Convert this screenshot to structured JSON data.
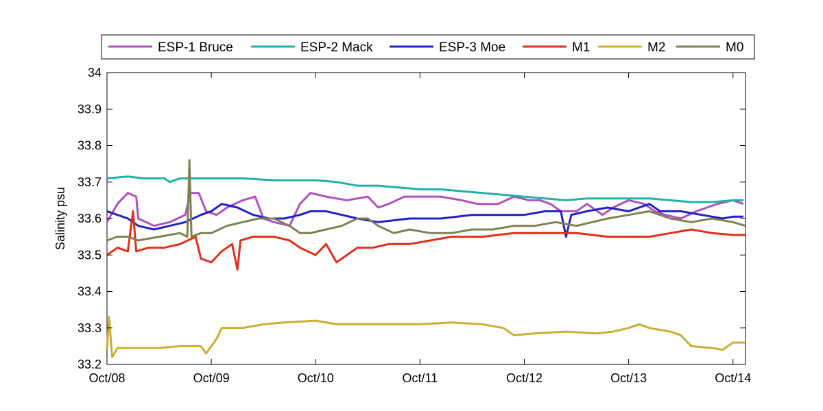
{
  "chart_data": {
    "type": "line",
    "title": "",
    "xlabel": "",
    "ylabel": "Salinity psu",
    "x_ticks": [
      "Oct/08",
      "Oct/09",
      "Oct/10",
      "Oct/11",
      "Oct/12",
      "Oct/13",
      "Oct/14"
    ],
    "x_range": [
      2008.0,
      2014.12
    ],
    "ylim": [
      33.2,
      34.0
    ],
    "y_ticks": [
      "33.2",
      "33.3",
      "33.4",
      "33.5",
      "33.6",
      "33.7",
      "33.8",
      "33.9",
      "34"
    ],
    "grid": false,
    "legend": "top-outside",
    "series": [
      {
        "name": "ESP-1 Bruce",
        "color": "#b050c0",
        "points": [
          [
            2008.0,
            33.59
          ],
          [
            2008.1,
            33.64
          ],
          [
            2008.2,
            33.67
          ],
          [
            2008.28,
            33.66
          ],
          [
            2008.3,
            33.6
          ],
          [
            2008.45,
            33.58
          ],
          [
            2008.6,
            33.59
          ],
          [
            2008.75,
            33.61
          ],
          [
            2008.8,
            33.67
          ],
          [
            2008.88,
            33.67
          ],
          [
            2008.95,
            33.62
          ],
          [
            2009.05,
            33.61
          ],
          [
            2009.15,
            33.63
          ],
          [
            2009.3,
            33.65
          ],
          [
            2009.42,
            33.66
          ],
          [
            2009.5,
            33.6
          ],
          [
            2009.6,
            33.59
          ],
          [
            2009.75,
            33.58
          ],
          [
            2009.85,
            33.64
          ],
          [
            2009.95,
            33.67
          ],
          [
            2010.1,
            33.66
          ],
          [
            2010.3,
            33.65
          ],
          [
            2010.5,
            33.66
          ],
          [
            2010.6,
            33.63
          ],
          [
            2010.7,
            33.64
          ],
          [
            2010.85,
            33.66
          ],
          [
            2011.0,
            33.66
          ],
          [
            2011.2,
            33.66
          ],
          [
            2011.4,
            33.65
          ],
          [
            2011.55,
            33.64
          ],
          [
            2011.75,
            33.64
          ],
          [
            2011.9,
            33.66
          ],
          [
            2012.05,
            33.65
          ],
          [
            2012.15,
            33.65
          ],
          [
            2012.25,
            33.64
          ],
          [
            2012.35,
            33.62
          ],
          [
            2012.5,
            33.62
          ],
          [
            2012.6,
            33.64
          ],
          [
            2012.75,
            33.61
          ],
          [
            2012.85,
            33.63
          ],
          [
            2013.0,
            33.65
          ],
          [
            2013.15,
            33.64
          ],
          [
            2013.25,
            33.62
          ],
          [
            2013.35,
            33.61
          ],
          [
            2013.5,
            33.6
          ],
          [
            2013.65,
            33.62
          ],
          [
            2013.75,
            33.63
          ],
          [
            2013.85,
            33.64
          ],
          [
            2014.0,
            33.65
          ],
          [
            2014.1,
            33.64
          ]
        ]
      },
      {
        "name": "ESP-2 Mack",
        "color": "#20b0a8",
        "points": [
          [
            2008.0,
            33.71
          ],
          [
            2008.2,
            33.715
          ],
          [
            2008.35,
            33.71
          ],
          [
            2008.55,
            33.71
          ],
          [
            2008.6,
            33.7
          ],
          [
            2008.7,
            33.71
          ],
          [
            2009.0,
            33.71
          ],
          [
            2009.3,
            33.71
          ],
          [
            2009.6,
            33.705
          ],
          [
            2010.0,
            33.705
          ],
          [
            2010.2,
            33.7
          ],
          [
            2010.4,
            33.69
          ],
          [
            2010.6,
            33.69
          ],
          [
            2010.8,
            33.685
          ],
          [
            2011.0,
            33.68
          ],
          [
            2011.2,
            33.68
          ],
          [
            2011.4,
            33.675
          ],
          [
            2011.6,
            33.67
          ],
          [
            2011.8,
            33.665
          ],
          [
            2012.0,
            33.66
          ],
          [
            2012.2,
            33.655
          ],
          [
            2012.4,
            33.65
          ],
          [
            2012.6,
            33.655
          ],
          [
            2012.8,
            33.655
          ],
          [
            2013.0,
            33.655
          ],
          [
            2013.2,
            33.655
          ],
          [
            2013.4,
            33.65
          ],
          [
            2013.6,
            33.645
          ],
          [
            2013.8,
            33.645
          ],
          [
            2014.0,
            33.65
          ],
          [
            2014.1,
            33.65
          ]
        ]
      },
      {
        "name": "ESP-3 Moe",
        "color": "#2020c8",
        "points": [
          [
            2008.0,
            33.62
          ],
          [
            2008.1,
            33.61
          ],
          [
            2008.2,
            33.6
          ],
          [
            2008.3,
            33.58
          ],
          [
            2008.45,
            33.57
          ],
          [
            2008.6,
            33.58
          ],
          [
            2008.75,
            33.59
          ],
          [
            2008.9,
            33.61
          ],
          [
            2009.0,
            33.62
          ],
          [
            2009.1,
            33.64
          ],
          [
            2009.25,
            33.63
          ],
          [
            2009.4,
            33.61
          ],
          [
            2009.55,
            33.6
          ],
          [
            2009.7,
            33.6
          ],
          [
            2009.85,
            33.61
          ],
          [
            2009.95,
            33.62
          ],
          [
            2010.1,
            33.62
          ],
          [
            2010.25,
            33.61
          ],
          [
            2010.4,
            33.6
          ],
          [
            2010.6,
            33.59
          ],
          [
            2010.9,
            33.6
          ],
          [
            2011.2,
            33.6
          ],
          [
            2011.5,
            33.61
          ],
          [
            2011.8,
            33.61
          ],
          [
            2012.0,
            33.61
          ],
          [
            2012.2,
            33.62
          ],
          [
            2012.35,
            33.62
          ],
          [
            2012.4,
            33.55
          ],
          [
            2012.45,
            33.61
          ],
          [
            2012.6,
            33.62
          ],
          [
            2012.8,
            33.63
          ],
          [
            2013.0,
            33.62
          ],
          [
            2013.1,
            33.63
          ],
          [
            2013.2,
            33.64
          ],
          [
            2013.3,
            33.62
          ],
          [
            2013.5,
            33.62
          ],
          [
            2013.7,
            33.61
          ],
          [
            2013.9,
            33.6
          ],
          [
            2014.0,
            33.605
          ],
          [
            2014.1,
            33.605
          ]
        ]
      },
      {
        "name": "M1",
        "color": "#e03018",
        "points": [
          [
            2008.0,
            33.5
          ],
          [
            2008.1,
            33.52
          ],
          [
            2008.2,
            33.51
          ],
          [
            2008.25,
            33.62
          ],
          [
            2008.28,
            33.51
          ],
          [
            2008.4,
            33.52
          ],
          [
            2008.55,
            33.52
          ],
          [
            2008.7,
            33.53
          ],
          [
            2008.85,
            33.55
          ],
          [
            2008.9,
            33.49
          ],
          [
            2009.0,
            33.48
          ],
          [
            2009.1,
            33.51
          ],
          [
            2009.2,
            33.53
          ],
          [
            2009.25,
            33.46
          ],
          [
            2009.28,
            33.54
          ],
          [
            2009.4,
            33.55
          ],
          [
            2009.6,
            33.55
          ],
          [
            2009.75,
            33.54
          ],
          [
            2009.85,
            33.52
          ],
          [
            2010.0,
            33.5
          ],
          [
            2010.1,
            33.53
          ],
          [
            2010.2,
            33.48
          ],
          [
            2010.3,
            33.5
          ],
          [
            2010.4,
            33.52
          ],
          [
            2010.55,
            33.52
          ],
          [
            2010.7,
            33.53
          ],
          [
            2010.9,
            33.53
          ],
          [
            2011.1,
            33.54
          ],
          [
            2011.3,
            33.55
          ],
          [
            2011.6,
            33.55
          ],
          [
            2011.9,
            33.56
          ],
          [
            2012.2,
            33.56
          ],
          [
            2012.5,
            33.56
          ],
          [
            2012.8,
            33.55
          ],
          [
            2013.0,
            33.55
          ],
          [
            2013.2,
            33.55
          ],
          [
            2013.4,
            33.56
          ],
          [
            2013.6,
            33.57
          ],
          [
            2013.8,
            33.56
          ],
          [
            2014.0,
            33.555
          ],
          [
            2014.12,
            33.555
          ]
        ]
      },
      {
        "name": "M2",
        "color": "#c8b030",
        "points": [
          [
            2008.0,
            33.24
          ],
          [
            2008.02,
            33.33
          ],
          [
            2008.05,
            33.22
          ],
          [
            2008.1,
            33.245
          ],
          [
            2008.3,
            33.245
          ],
          [
            2008.5,
            33.245
          ],
          [
            2008.7,
            33.25
          ],
          [
            2008.9,
            33.25
          ],
          [
            2008.95,
            33.23
          ],
          [
            2009.05,
            33.27
          ],
          [
            2009.1,
            33.3
          ],
          [
            2009.3,
            33.3
          ],
          [
            2009.5,
            33.31
          ],
          [
            2009.7,
            33.315
          ],
          [
            2010.0,
            33.32
          ],
          [
            2010.2,
            33.31
          ],
          [
            2010.5,
            33.31
          ],
          [
            2010.8,
            33.31
          ],
          [
            2011.0,
            33.31
          ],
          [
            2011.3,
            33.315
          ],
          [
            2011.6,
            33.31
          ],
          [
            2011.8,
            33.3
          ],
          [
            2011.9,
            33.28
          ],
          [
            2012.1,
            33.285
          ],
          [
            2012.4,
            33.29
          ],
          [
            2012.7,
            33.285
          ],
          [
            2012.85,
            33.29
          ],
          [
            2013.0,
            33.3
          ],
          [
            2013.1,
            33.31
          ],
          [
            2013.2,
            33.3
          ],
          [
            2013.4,
            33.29
          ],
          [
            2013.5,
            33.28
          ],
          [
            2013.6,
            33.25
          ],
          [
            2013.8,
            33.245
          ],
          [
            2013.9,
            33.24
          ],
          [
            2014.0,
            33.26
          ],
          [
            2014.12,
            33.26
          ]
        ]
      },
      {
        "name": "M0",
        "color": "#808050",
        "points": [
          [
            2008.0,
            33.54
          ],
          [
            2008.1,
            33.55
          ],
          [
            2008.2,
            33.55
          ],
          [
            2008.3,
            33.54
          ],
          [
            2008.5,
            33.55
          ],
          [
            2008.7,
            33.56
          ],
          [
            2008.77,
            33.55
          ],
          [
            2008.79,
            33.76
          ],
          [
            2008.81,
            33.55
          ],
          [
            2008.9,
            33.56
          ],
          [
            2009.0,
            33.56
          ],
          [
            2009.15,
            33.58
          ],
          [
            2009.3,
            33.59
          ],
          [
            2009.45,
            33.6
          ],
          [
            2009.6,
            33.6
          ],
          [
            2009.75,
            33.58
          ],
          [
            2009.85,
            33.56
          ],
          [
            2009.95,
            33.56
          ],
          [
            2010.1,
            33.57
          ],
          [
            2010.25,
            33.58
          ],
          [
            2010.4,
            33.6
          ],
          [
            2010.5,
            33.6
          ],
          [
            2010.6,
            33.58
          ],
          [
            2010.75,
            33.56
          ],
          [
            2010.9,
            33.57
          ],
          [
            2011.1,
            33.56
          ],
          [
            2011.3,
            33.56
          ],
          [
            2011.5,
            33.57
          ],
          [
            2011.7,
            33.57
          ],
          [
            2011.9,
            33.58
          ],
          [
            2012.1,
            33.58
          ],
          [
            2012.3,
            33.59
          ],
          [
            2012.5,
            33.58
          ],
          [
            2012.65,
            33.59
          ],
          [
            2012.8,
            33.6
          ],
          [
            2013.0,
            33.61
          ],
          [
            2013.2,
            33.62
          ],
          [
            2013.4,
            33.6
          ],
          [
            2013.6,
            33.59
          ],
          [
            2013.8,
            33.6
          ],
          [
            2014.0,
            33.59
          ],
          [
            2014.12,
            33.58
          ]
        ]
      }
    ]
  }
}
